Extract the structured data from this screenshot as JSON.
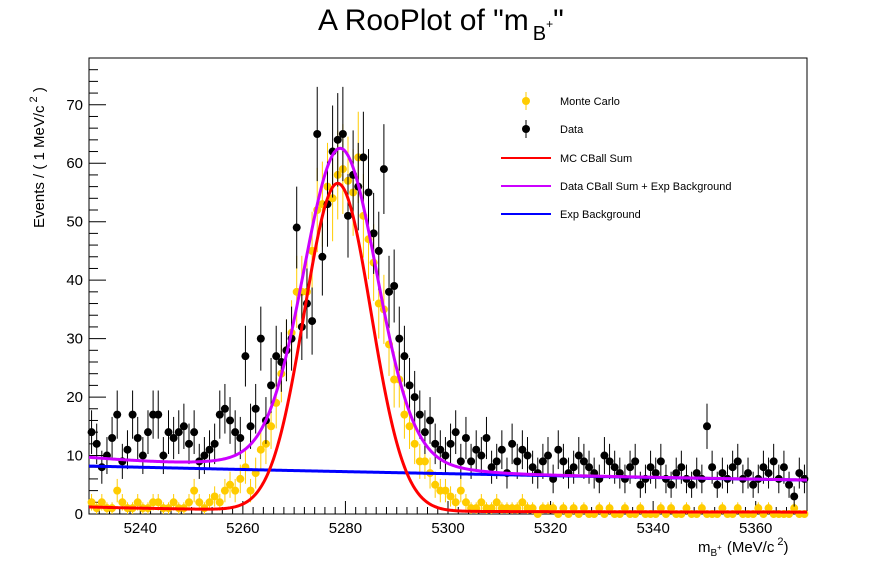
{
  "chart_data": {
    "type": "scatter",
    "title_main": "A RooPlot of \"m",
    "title_sub": "B",
    "title_sup": "+",
    "title_close": "\"",
    "xlabel_main": "m",
    "xlabel_sub": "B",
    "xlabel_sup": "+",
    "xlabel_units": "(MeV/c",
    "xlabel_units_sup": "2",
    "xlabel_close": ")",
    "ylabel_main": "Events / ( 1 MeV/c",
    "ylabel_sup": "2",
    "ylabel_close": " )",
    "xlim": [
      5230,
      5370
    ],
    "ylim": [
      0,
      78
    ],
    "xticks": [
      5240,
      5260,
      5280,
      5300,
      5320,
      5340,
      5360
    ],
    "yticks": [
      0,
      10,
      20,
      30,
      40,
      50,
      60,
      70
    ],
    "grid": false,
    "legend_position": "top-right",
    "colors": {
      "monte_carlo": "#ffcc00",
      "data": "#000000",
      "mc_fit": "#ff0000",
      "data_fit": "#cc00ff",
      "background": "#0000ff"
    },
    "legend": [
      {
        "label": "Monte Carlo",
        "kind": "marker",
        "color": "#ffcc00"
      },
      {
        "label": "Data",
        "kind": "marker",
        "color": "#000000"
      },
      {
        "label": "MC CBall Sum",
        "kind": "line",
        "color": "#ff0000"
      },
      {
        "label": "Data CBall Sum + Exp Background",
        "kind": "line",
        "color": "#cc00ff"
      },
      {
        "label": "Exp Background",
        "kind": "line",
        "color": "#0000ff"
      }
    ],
    "series": [
      {
        "name": "Data",
        "x": [
          5230.5,
          5231.5,
          5232.5,
          5233.5,
          5234.5,
          5235.5,
          5236.5,
          5237.5,
          5238.5,
          5239.5,
          5240.5,
          5241.5,
          5242.5,
          5243.5,
          5244.5,
          5245.5,
          5246.5,
          5247.5,
          5248.5,
          5249.5,
          5250.5,
          5251.5,
          5252.5,
          5253.5,
          5254.5,
          5255.5,
          5256.5,
          5257.5,
          5258.5,
          5259.5,
          5260.5,
          5261.5,
          5262.5,
          5263.5,
          5264.5,
          5265.5,
          5266.5,
          5267.5,
          5268.5,
          5269.5,
          5270.5,
          5271.5,
          5272.5,
          5273.5,
          5274.5,
          5275.5,
          5276.5,
          5277.5,
          5278.5,
          5279.5,
          5280.5,
          5281.5,
          5282.5,
          5283.5,
          5284.5,
          5285.5,
          5286.5,
          5287.5,
          5288.5,
          5289.5,
          5290.5,
          5291.5,
          5292.5,
          5293.5,
          5294.5,
          5295.5,
          5296.5,
          5297.5,
          5298.5,
          5299.5,
          5300.5,
          5301.5,
          5302.5,
          5303.5,
          5304.5,
          5305.5,
          5306.5,
          5307.5,
          5308.5,
          5309.5,
          5310.5,
          5311.5,
          5312.5,
          5313.5,
          5314.5,
          5315.5,
          5316.5,
          5317.5,
          5318.5,
          5319.5,
          5320.5,
          5321.5,
          5322.5,
          5323.5,
          5324.5,
          5325.5,
          5326.5,
          5327.5,
          5328.5,
          5329.5,
          5330.5,
          5331.5,
          5332.5,
          5333.5,
          5334.5,
          5335.5,
          5336.5,
          5337.5,
          5338.5,
          5339.5,
          5340.5,
          5341.5,
          5342.5,
          5343.5,
          5344.5,
          5345.5,
          5346.5,
          5347.5,
          5348.5,
          5349.5,
          5350.5,
          5351.5,
          5352.5,
          5353.5,
          5354.5,
          5355.5,
          5356.5,
          5357.5,
          5358.5,
          5359.5,
          5360.5,
          5361.5,
          5362.5,
          5363.5,
          5364.5,
          5365.5,
          5366.5,
          5367.5,
          5368.5,
          5369.5
        ],
        "y": [
          14,
          12,
          8,
          10,
          13,
          17,
          9,
          11,
          17,
          13,
          10,
          14,
          17,
          17,
          10,
          14,
          13,
          14,
          15,
          12,
          14,
          9,
          10,
          11,
          12,
          17,
          18,
          16,
          14,
          13,
          27,
          15,
          18,
          30,
          16,
          22,
          27,
          26,
          28,
          30,
          49,
          32,
          36,
          33,
          65,
          44,
          53,
          62,
          64,
          65,
          51,
          58,
          56,
          61,
          55,
          48,
          45,
          59,
          38,
          39,
          30,
          27,
          22,
          20,
          17,
          14,
          16,
          12,
          11,
          10,
          12,
          14,
          9,
          13,
          9,
          11,
          10,
          13,
          8,
          9,
          11,
          7,
          12,
          9,
          11,
          10,
          8,
          7,
          9,
          10,
          6,
          11,
          9,
          7,
          8,
          10,
          9,
          8,
          7,
          6,
          10,
          9,
          8,
          7,
          6,
          8,
          9,
          5,
          6,
          8,
          7,
          9,
          6,
          5,
          7,
          8,
          6,
          5,
          7,
          6,
          15,
          8,
          5,
          7,
          6,
          8,
          9,
          6,
          7,
          5,
          6,
          8,
          7,
          9,
          6,
          8,
          5,
          3,
          7,
          6
        ]
      },
      {
        "name": "Monte Carlo",
        "x": [
          5230.5,
          5231.5,
          5232.5,
          5233.5,
          5234.5,
          5235.5,
          5236.5,
          5237.5,
          5238.5,
          5239.5,
          5240.5,
          5241.5,
          5242.5,
          5243.5,
          5244.5,
          5245.5,
          5246.5,
          5247.5,
          5248.5,
          5249.5,
          5250.5,
          5251.5,
          5252.5,
          5253.5,
          5254.5,
          5255.5,
          5256.5,
          5257.5,
          5258.5,
          5259.5,
          5260.5,
          5261.5,
          5262.5,
          5263.5,
          5264.5,
          5265.5,
          5266.5,
          5267.5,
          5268.5,
          5269.5,
          5270.5,
          5271.5,
          5272.5,
          5273.5,
          5274.5,
          5275.5,
          5276.5,
          5277.5,
          5278.5,
          5279.5,
          5280.5,
          5281.5,
          5282.5,
          5283.5,
          5284.5,
          5285.5,
          5286.5,
          5287.5,
          5288.5,
          5289.5,
          5290.5,
          5291.5,
          5292.5,
          5293.5,
          5294.5,
          5295.5,
          5296.5,
          5297.5,
          5298.5,
          5299.5,
          5300.5,
          5301.5,
          5302.5,
          5303.5,
          5304.5,
          5305.5,
          5306.5,
          5307.5,
          5308.5,
          5309.5,
          5310.5,
          5311.5,
          5312.5,
          5313.5,
          5314.5,
          5315.5,
          5316.5,
          5317.5,
          5318.5,
          5319.5,
          5320.5,
          5321.5,
          5322.5,
          5323.5,
          5324.5,
          5325.5,
          5326.5,
          5327.5,
          5328.5,
          5329.5,
          5330.5,
          5331.5,
          5332.5,
          5333.5,
          5334.5,
          5335.5,
          5336.5,
          5337.5,
          5338.5,
          5339.5,
          5340.5,
          5341.5,
          5342.5,
          5343.5,
          5344.5,
          5345.5,
          5346.5,
          5347.5,
          5348.5,
          5349.5,
          5350.5,
          5351.5,
          5352.5,
          5353.5,
          5354.5,
          5355.5,
          5356.5,
          5357.5,
          5358.5,
          5359.5,
          5360.5,
          5361.5,
          5362.5,
          5363.5,
          5364.5,
          5365.5,
          5366.5,
          5367.5,
          5368.5,
          5369.5
        ],
        "y": [
          2,
          1,
          2,
          1,
          1,
          4,
          2,
          1,
          1,
          2,
          1,
          1,
          2,
          2,
          1,
          1,
          2,
          1,
          1,
          2,
          4,
          2,
          1,
          2,
          3,
          2,
          4,
          5,
          4,
          6,
          8,
          4,
          7,
          11,
          12,
          15,
          19,
          24,
          28,
          31,
          38,
          38,
          38,
          45,
          52,
          53,
          56,
          54,
          58,
          59,
          57,
          55,
          61,
          51,
          47,
          43,
          36,
          35,
          29,
          23,
          23,
          17,
          15,
          12,
          9,
          9,
          7,
          5,
          4,
          4,
          3,
          2,
          4,
          2,
          1,
          1,
          2,
          1,
          1,
          2,
          1,
          1,
          1,
          1,
          2,
          1,
          1,
          0,
          1,
          1,
          1,
          0,
          1,
          0,
          1,
          0,
          1,
          0,
          0,
          1,
          0,
          1,
          0,
          0,
          1,
          0,
          0,
          1,
          0,
          0,
          0,
          1,
          0,
          1,
          0,
          0,
          1,
          0,
          0,
          1,
          0,
          0,
          0,
          1,
          0,
          0,
          1,
          0,
          0,
          0,
          1,
          0,
          1,
          0,
          0,
          0,
          0,
          1,
          0,
          0
        ]
      },
      {
        "name": "MC CBall Sum",
        "peak": 56.0,
        "mean": 5278.5,
        "sigma": 6.5,
        "baseline": 0.3
      },
      {
        "name": "Data CBall Sum + Exp Background",
        "peak": 55.0,
        "mean": 5279,
        "sigma": 7.0,
        "tail_width": 13,
        "tail_amplitude": 0.07
      },
      {
        "name": "Exp Background",
        "y_start": 8.2,
        "y_end": 5.8
      }
    ]
  }
}
